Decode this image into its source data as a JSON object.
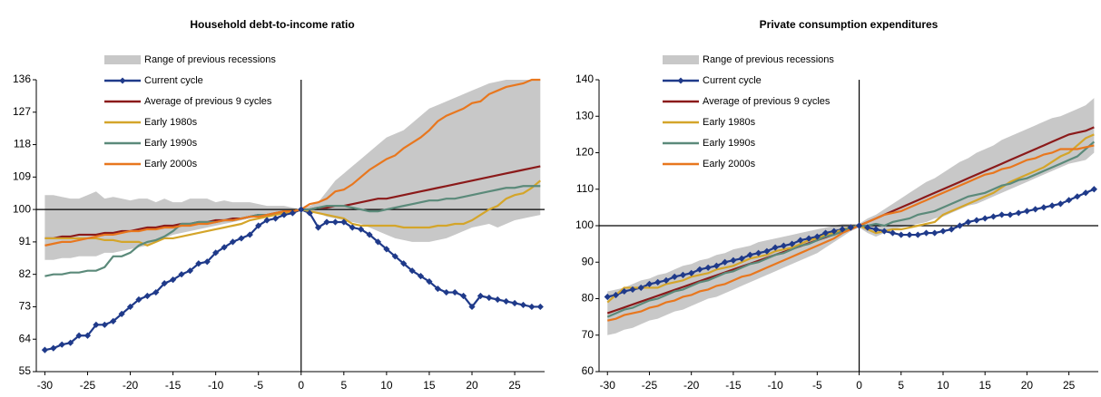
{
  "chart_data": [
    {
      "type": "line",
      "title": "Household debt-to-income ratio",
      "x": [
        -30,
        -29,
        -28,
        -27,
        -26,
        -25,
        -24,
        -23,
        -22,
        -21,
        -20,
        -19,
        -18,
        -17,
        -16,
        -15,
        -14,
        -13,
        -12,
        -11,
        -10,
        -9,
        -8,
        -7,
        -6,
        -5,
        -4,
        -3,
        -2,
        -1,
        0,
        1,
        2,
        3,
        4,
        5,
        6,
        7,
        8,
        9,
        10,
        11,
        12,
        13,
        14,
        15,
        16,
        17,
        18,
        19,
        20,
        21,
        22,
        23,
        24,
        25,
        26,
        27,
        28
      ],
      "xlim": [
        -31,
        28.5
      ],
      "xticks": [
        -30,
        -25,
        -20,
        -15,
        -10,
        -5,
        0,
        5,
        10,
        15,
        20,
        25
      ],
      "ylim": [
        55,
        136
      ],
      "yticks": [
        55,
        64,
        73,
        82,
        91,
        100,
        109,
        118,
        127,
        136
      ],
      "hline": 100,
      "vline": 0,
      "legend": "upper-left",
      "range": {
        "name": "Range of previous recessions",
        "color": "#c8c8c8",
        "upper": [
          104,
          104,
          103.5,
          103,
          103,
          104,
          105,
          103,
          103.5,
          103,
          102.5,
          103,
          103,
          102,
          103,
          102,
          102,
          103,
          103,
          103,
          102,
          102.5,
          102,
          102,
          102,
          101.5,
          101,
          101,
          101,
          100.5,
          100,
          101,
          102,
          105,
          108,
          110,
          112,
          114,
          116,
          118,
          120,
          121,
          122,
          124,
          126,
          128,
          129,
          130,
          131,
          132,
          133,
          134,
          135,
          135.5,
          136,
          136,
          136,
          136,
          136
        ],
        "lower": [
          86,
          86,
          86.5,
          86.5,
          87,
          87,
          87,
          88,
          88,
          88.5,
          89,
          89.5,
          90,
          91,
          92,
          93,
          93.5,
          94,
          94.5,
          95,
          95.5,
          96,
          96.5,
          97,
          97.5,
          98,
          98.5,
          99,
          99.5,
          99.5,
          100,
          99.5,
          99,
          98,
          97.5,
          97,
          96.5,
          96,
          95,
          94,
          93,
          92,
          91.5,
          91,
          91,
          91,
          91.5,
          92,
          93,
          94,
          95,
          95.5,
          96,
          95,
          96,
          97,
          97.5,
          98,
          98.5
        ]
      },
      "series": [
        {
          "name": "Current cycle",
          "color": "#1f3a8a",
          "marker": true,
          "values": [
            61,
            61.5,
            62.5,
            63,
            65,
            65,
            68,
            68,
            69,
            71,
            73,
            75,
            76,
            77,
            79.5,
            80.5,
            82,
            83,
            85,
            85.5,
            88,
            89.5,
            91,
            92,
            93,
            95.5,
            97,
            97.5,
            98.5,
            99,
            100,
            99,
            95,
            96.5,
            96.5,
            96.5,
            95,
            94.5,
            93,
            91,
            89,
            87,
            85,
            83,
            81.5,
            80,
            78,
            77,
            77,
            76,
            73,
            76,
            75.5,
            75,
            74.5,
            74,
            73.5,
            73,
            73
          ]
        },
        {
          "name": "Average of previous 9 cycles",
          "color": "#8b1a1a",
          "marker": false,
          "values": [
            92,
            92,
            92.5,
            92.5,
            93,
            93,
            93,
            93.5,
            93.5,
            94,
            94,
            94.5,
            95,
            95,
            95.5,
            95.5,
            96,
            96,
            96.5,
            96.5,
            97,
            97,
            97.5,
            97.5,
            98,
            98.5,
            98.5,
            99,
            99.5,
            99.5,
            100,
            100,
            100.5,
            100.5,
            101,
            101,
            101.5,
            102,
            102.5,
            103,
            103,
            103.5,
            104,
            104.5,
            105,
            105.5,
            106,
            106.5,
            107,
            107.5,
            108,
            108.5,
            109,
            109.5,
            110,
            110.5,
            111,
            111.5,
            112
          ]
        },
        {
          "name": "Early 1980s",
          "color": "#d4a52a",
          "marker": false,
          "values": [
            92,
            92,
            92,
            92,
            92,
            92,
            92,
            91.5,
            91.5,
            91,
            91,
            91,
            90,
            91,
            92,
            92,
            92.5,
            93,
            93.5,
            94,
            94.5,
            95,
            95.5,
            96,
            97,
            97.5,
            98,
            98.5,
            99,
            99.5,
            100,
            99.5,
            99,
            98.5,
            98,
            97.5,
            96,
            95.5,
            95.5,
            95.5,
            95.5,
            95.5,
            95,
            95,
            95,
            95,
            95.5,
            95.5,
            96,
            96,
            97,
            98.5,
            100,
            101,
            103,
            104,
            104.5,
            106,
            108
          ]
        },
        {
          "name": "Early 1990s",
          "color": "#5b8a7a",
          "marker": false,
          "values": [
            81.5,
            82,
            82,
            82.5,
            82.5,
            83,
            83,
            84,
            87,
            87,
            88,
            90,
            91,
            91.5,
            92.5,
            94,
            96,
            96,
            96.5,
            96.5,
            96.5,
            97,
            97,
            97.5,
            98,
            98.5,
            98.5,
            99,
            99.5,
            99.5,
            100,
            100,
            100.5,
            101,
            101,
            101,
            100.5,
            100,
            99.5,
            99.5,
            100,
            100.5,
            101,
            101.5,
            102,
            102.5,
            102.5,
            103,
            103,
            103.5,
            104,
            104.5,
            105,
            105.5,
            106,
            106,
            106.5,
            106.5,
            106.5
          ]
        },
        {
          "name": "Early 2000s",
          "color": "#e8771e",
          "marker": false,
          "values": [
            90,
            90.5,
            91,
            91,
            91.5,
            92,
            92.5,
            93,
            93,
            93.5,
            94,
            94,
            94.5,
            94.5,
            95,
            95,
            95.5,
            95.5,
            96,
            96,
            96.5,
            97,
            97,
            97.5,
            98,
            98,
            98.5,
            99,
            99.5,
            99.5,
            100,
            101.5,
            102,
            103,
            105,
            105.5,
            107,
            109,
            111,
            112.5,
            114,
            115,
            117,
            118.5,
            120,
            122,
            124.5,
            126,
            127,
            128,
            129.5,
            130,
            132,
            133,
            134,
            134.5,
            135,
            136,
            136
          ]
        }
      ]
    },
    {
      "type": "line",
      "title": "Private consumption expenditures",
      "x": [
        -30,
        -29,
        -28,
        -27,
        -26,
        -25,
        -24,
        -23,
        -22,
        -21,
        -20,
        -19,
        -18,
        -17,
        -16,
        -15,
        -14,
        -13,
        -12,
        -11,
        -10,
        -9,
        -8,
        -7,
        -6,
        -5,
        -4,
        -3,
        -2,
        -1,
        0,
        1,
        2,
        3,
        4,
        5,
        6,
        7,
        8,
        9,
        10,
        11,
        12,
        13,
        14,
        15,
        16,
        17,
        18,
        19,
        20,
        21,
        22,
        23,
        24,
        25,
        26,
        27,
        28
      ],
      "xlim": [
        -31,
        28.5
      ],
      "xticks": [
        -30,
        -25,
        -20,
        -15,
        -10,
        -5,
        0,
        5,
        10,
        15,
        20,
        25
      ],
      "ylim": [
        60,
        140
      ],
      "yticks": [
        60,
        70,
        80,
        90,
        100,
        110,
        120,
        130,
        140
      ],
      "hline": 100,
      "vline": 0,
      "legend": "upper-left",
      "range": {
        "name": "Range of previous recessions",
        "color": "#c8c8c8",
        "upper": [
          82,
          82.5,
          83,
          84,
          85,
          85.5,
          86.5,
          87,
          88,
          89,
          89.5,
          90.5,
          91,
          92,
          92.5,
          93.5,
          94,
          94.5,
          95.5,
          96,
          96.5,
          97,
          97.5,
          98,
          98.5,
          99,
          99.5,
          100,
          100.5,
          100.5,
          100.5,
          102,
          103,
          104.5,
          106,
          107.5,
          109,
          110.5,
          112,
          113,
          114.5,
          116,
          117.5,
          118.5,
          120,
          121,
          122,
          123.5,
          124.5,
          125.5,
          126.5,
          127.5,
          128.5,
          129.5,
          130,
          131,
          132,
          133,
          135
        ],
        "lower": [
          70,
          70.5,
          71.5,
          72,
          73,
          74,
          74.5,
          75.5,
          76.5,
          77,
          78,
          79,
          80,
          80.5,
          81.5,
          82.5,
          83.5,
          84.5,
          85.5,
          86.5,
          87.5,
          88.5,
          89.5,
          90.5,
          91.5,
          92.5,
          94,
          95.5,
          97,
          98.5,
          99.5,
          98,
          97,
          98,
          99,
          99.5,
          100,
          100.5,
          101,
          102,
          102.5,
          103.5,
          104.5,
          105.5,
          106,
          107,
          108,
          109,
          110,
          111,
          112,
          113,
          114,
          115,
          116,
          117,
          117.5,
          118,
          120
        ]
      },
      "series": [
        {
          "name": "Current cycle",
          "color": "#1f3a8a",
          "marker": true,
          "values": [
            80.5,
            81,
            82,
            82.5,
            83,
            84,
            84.5,
            85,
            86,
            86.5,
            87,
            88,
            88.5,
            89,
            90,
            90.5,
            91,
            92,
            92.5,
            93,
            94,
            94.5,
            95,
            96,
            96.5,
            97,
            98,
            98.5,
            99,
            99.5,
            100,
            99.5,
            99,
            98.5,
            98,
            97.5,
            97.5,
            97.5,
            98,
            98,
            98.5,
            99,
            100,
            101,
            101.5,
            102,
            102.5,
            103,
            103,
            103.5,
            104,
            104.5,
            105,
            105.5,
            106,
            107,
            108,
            109,
            110
          ]
        },
        {
          "name": "Average of previous 9 cycles",
          "color": "#8b1a1a",
          "marker": false,
          "values": [
            76,
            76.8,
            77.6,
            78.4,
            79.2,
            80,
            80.8,
            81.6,
            82.4,
            83.2,
            84,
            84.8,
            85.6,
            86.4,
            87.2,
            88,
            88.8,
            89.6,
            90.4,
            91.2,
            92,
            92.8,
            93.6,
            94.4,
            95.2,
            96,
            96.8,
            97.6,
            98.4,
            99.2,
            100,
            101,
            102,
            103,
            104,
            105,
            106,
            107,
            108,
            109,
            110,
            111,
            112,
            113,
            114,
            115,
            116,
            117,
            118,
            119,
            120,
            121,
            122,
            123,
            124,
            125,
            125.5,
            126,
            127
          ]
        },
        {
          "name": "Early 1980s",
          "color": "#d4a52a",
          "marker": false,
          "values": [
            79,
            81,
            83,
            83,
            83,
            83,
            83,
            84,
            84.5,
            85,
            86,
            86.5,
            87,
            88,
            88.5,
            89,
            90,
            91,
            91.5,
            92,
            93,
            93.5,
            94,
            95,
            96,
            96.5,
            97.5,
            98,
            99,
            99.5,
            100,
            99,
            98,
            98.5,
            99,
            99,
            99.5,
            100,
            100.5,
            101,
            103,
            104,
            105,
            106,
            107,
            108,
            109,
            110.5,
            112,
            113,
            114,
            115,
            116,
            117.5,
            119,
            120,
            122,
            124,
            125
          ]
        },
        {
          "name": "Early 1990s",
          "color": "#5b8a7a",
          "marker": false,
          "values": [
            75,
            76,
            77,
            77.5,
            78.5,
            79.5,
            80,
            81,
            82,
            82.5,
            83.5,
            84.5,
            85,
            86,
            87,
            87.5,
            88.5,
            89.5,
            90,
            91,
            92,
            92.5,
            93.5,
            94.5,
            95,
            96,
            97,
            97.5,
            98.5,
            99.5,
            100,
            100,
            100.5,
            100,
            101,
            101.5,
            102,
            103,
            103.5,
            104,
            105,
            106,
            107,
            108,
            108.5,
            109,
            110,
            111,
            111.5,
            112.5,
            113,
            114,
            115,
            116,
            117,
            118,
            119,
            121,
            123
          ]
        },
        {
          "name": "Early 2000s",
          "color": "#e8771e",
          "marker": false,
          "values": [
            74,
            74.5,
            75.5,
            76,
            76.5,
            77.5,
            78,
            79,
            79.5,
            80.5,
            81,
            82,
            82.5,
            83.5,
            84,
            85,
            86,
            86.5,
            87.5,
            88.5,
            89.5,
            90.5,
            91.5,
            92.5,
            93.5,
            94.5,
            95.5,
            96.5,
            98,
            99,
            100,
            101,
            102,
            103,
            103.5,
            104,
            105,
            106,
            107,
            108,
            109,
            110,
            111,
            112,
            113,
            114,
            114.5,
            115.5,
            116,
            117,
            118,
            118.5,
            119.5,
            120,
            121,
            121,
            121,
            121.5,
            122
          ]
        }
      ]
    }
  ]
}
